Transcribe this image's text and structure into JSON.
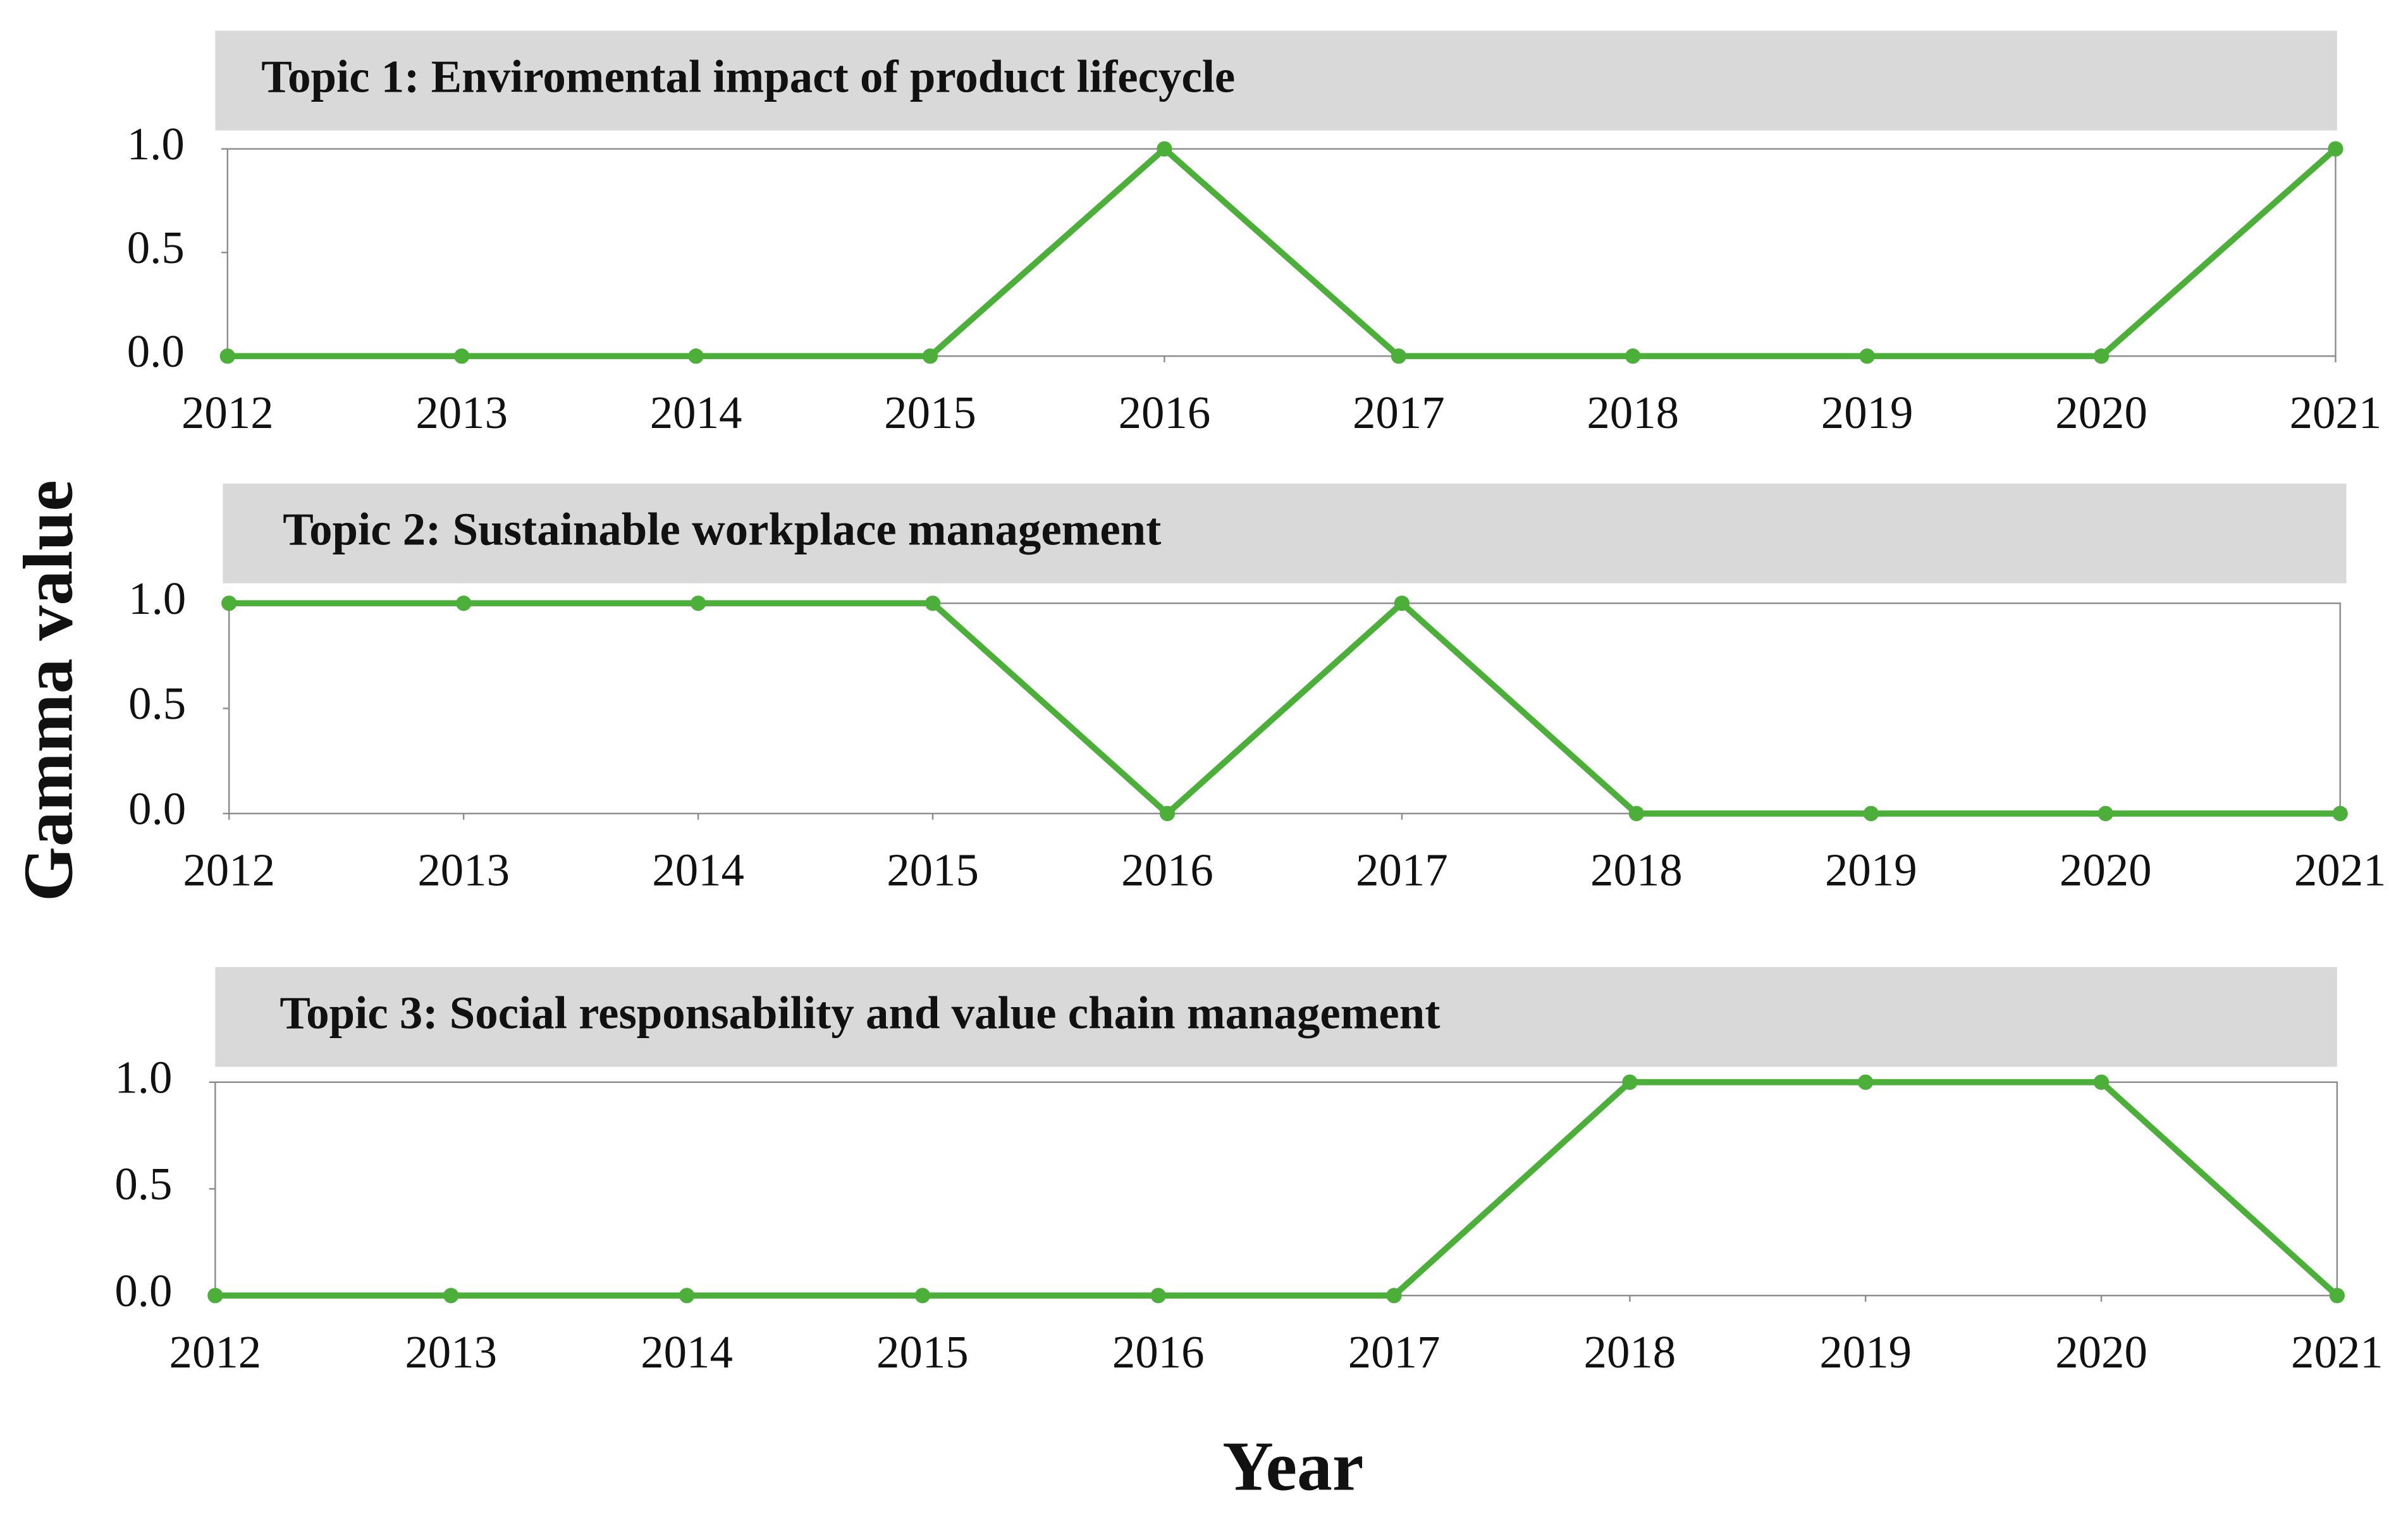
{
  "y_label": "Gamma value",
  "x_label": "Year",
  "chart_data": [
    {
      "type": "line",
      "title": "Topic 1: Enviromental impact of product lifecycle",
      "x": [
        2012,
        2013,
        2014,
        2015,
        2016,
        2017,
        2018,
        2019,
        2020,
        2021
      ],
      "series": [
        {
          "color": "#4caf3a",
          "values": [
            0,
            0,
            0,
            0,
            1,
            0,
            0,
            0,
            0,
            1
          ]
        }
      ],
      "xlim": [
        2012,
        2021
      ],
      "xticks": [
        2012,
        2013,
        2014,
        2015,
        2016,
        2017,
        2018,
        2019,
        2020,
        2021
      ],
      "ylim": [
        0,
        1
      ],
      "yticks": [
        {
          "value": 0,
          "label": "0.0"
        },
        {
          "value": 0.5,
          "label": "0.5"
        },
        {
          "value": 1,
          "label": "1.0"
        }
      ]
    },
    {
      "type": "line",
      "title": "Topic 2: Sustainable workplace management",
      "x": [
        2012,
        2013,
        2014,
        2015,
        2016,
        2017,
        2018,
        2019,
        2020,
        2021
      ],
      "series": [
        {
          "color": "#4caf3a",
          "values": [
            1,
            1,
            1,
            1,
            0,
            1,
            0,
            0,
            0,
            0
          ]
        }
      ],
      "xlim": [
        2012,
        2021
      ],
      "xticks": [
        2012,
        2013,
        2014,
        2015,
        2016,
        2017,
        2018,
        2019,
        2020,
        2021
      ],
      "ylim": [
        0,
        1
      ],
      "yticks": [
        {
          "value": 0,
          "label": "0.0"
        },
        {
          "value": 0.5,
          "label": "0.5"
        },
        {
          "value": 1,
          "label": "1.0"
        }
      ]
    },
    {
      "type": "line",
      "title": "Topic 3: Social responsability and value chain management",
      "x": [
        2012,
        2013,
        2014,
        2015,
        2016,
        2017,
        2018,
        2019,
        2020,
        2021
      ],
      "series": [
        {
          "color": "#4caf3a",
          "values": [
            0,
            0,
            0,
            0,
            0,
            0,
            1,
            1,
            1,
            0
          ]
        }
      ],
      "xlim": [
        2012,
        2021
      ],
      "xticks": [
        2012,
        2013,
        2014,
        2015,
        2016,
        2017,
        2018,
        2019,
        2020,
        2021
      ],
      "ylim": [
        0,
        1
      ],
      "yticks": [
        {
          "value": 0,
          "label": "0.0"
        },
        {
          "value": 0.5,
          "label": "0.5"
        },
        {
          "value": 1,
          "label": "1.0"
        }
      ]
    }
  ]
}
